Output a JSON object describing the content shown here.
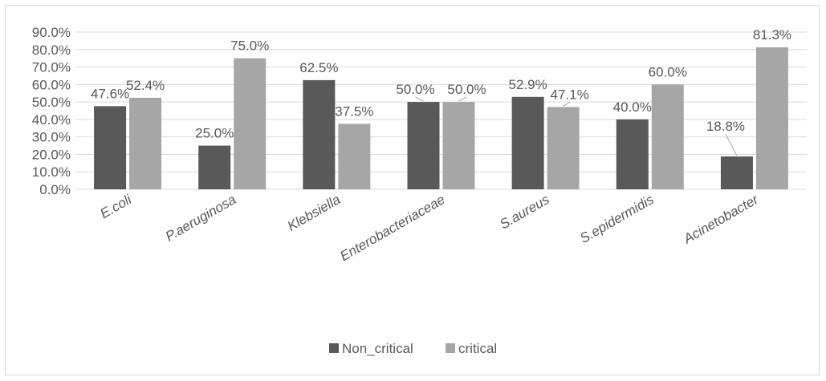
{
  "colors": {
    "non_critical": "#595959",
    "critical": "#a6a6a6",
    "grid": "#d9d9d9",
    "text": "#595959"
  },
  "chart_data": {
    "type": "bar",
    "categories": [
      "E.coli",
      "P.aeruginosa",
      "Klebsiella",
      "Enterobacteriaceae",
      "S.aureus",
      "S.epidermidis",
      "Acinetobacter"
    ],
    "series": [
      {
        "name": "Non_critical",
        "values": [
          47.6,
          25.0,
          62.5,
          50.0,
          52.9,
          40.0,
          18.8
        ],
        "labels": [
          "47.6%",
          "25.0%",
          "62.5%",
          "50.0%",
          "52.9%",
          "40.0%",
          "18.8%"
        ]
      },
      {
        "name": "critical",
        "values": [
          52.4,
          75.0,
          37.5,
          50.0,
          47.1,
          60.0,
          81.3
        ],
        "labels": [
          "52.4%",
          "75.0%",
          "37.5%",
          "50.0%",
          "47.1%",
          "60.0%",
          "81.3%"
        ]
      }
    ],
    "yticks": [
      "0.0%",
      "10.0%",
      "20.0%",
      "30.0%",
      "40.0%",
      "50.0%",
      "60.0%",
      "70.0%",
      "80.0%",
      "90.0%"
    ],
    "ylim": [
      0,
      90
    ],
    "grid": true,
    "legend_position": "bottom",
    "title": "",
    "xlabel": "",
    "ylabel": ""
  }
}
